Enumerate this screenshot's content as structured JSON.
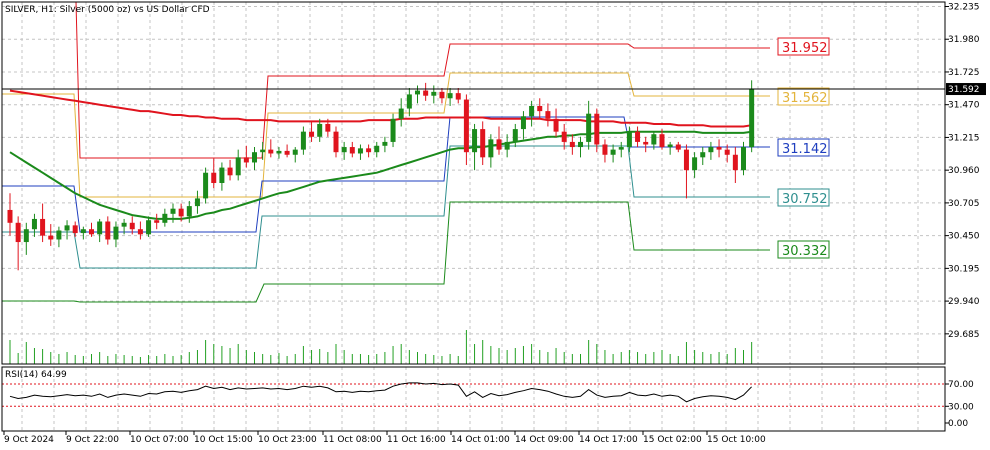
{
  "chart_title": "SILVER, H1:  Silver (5000 oz) vs US Dollar CFD",
  "rsi_label": "RSI(14) 64.99",
  "colors": {
    "bull": "#1b8a1b",
    "bear": "#e0141e",
    "ma_slow": "#e0141e",
    "ma_fast": "#1b8a1b",
    "grid": "#c4c4c4",
    "volume": "#22a022",
    "rsi_line": "#000000",
    "rsi_levels": "#e0141e"
  },
  "chart_data": {
    "type": "candlestick",
    "ylim": [
      29.45,
      32.27
    ],
    "y_ticks": [
      "32.235",
      "31.980",
      "31.725",
      "31.470",
      "31.215",
      "30.960",
      "30.705",
      "30.450",
      "30.195",
      "29.940",
      "29.685"
    ],
    "x_ticks": [
      "9 Oct 2024",
      "9 Oct 22:00",
      "10 Oct 07:00",
      "10 Oct 15:00",
      "10 Oct 23:00",
      "11 Oct 08:00",
      "11 Oct 16:00",
      "14 Oct 01:00",
      "14 Oct 09:00",
      "14 Oct 17:00",
      "15 Oct 02:00",
      "15 Oct 10:00"
    ],
    "current_price": "31.592",
    "current_price_value": 31.592,
    "levels": [
      {
        "label": "31.952",
        "value": 31.952,
        "color": "#e0141e"
      },
      {
        "label": "31.562",
        "value": 31.562,
        "color": "#e3b43c"
      },
      {
        "label": "31.142",
        "value": 31.142,
        "color": "#1f3fbf"
      },
      {
        "label": "30.752",
        "value": 30.752,
        "color": "#2f8f8f"
      },
      {
        "label": "30.332",
        "value": 30.332,
        "color": "#1b8a1b"
      }
    ],
    "candles": [
      {
        "o": 30.65,
        "h": 30.78,
        "l": 30.45,
        "c": 30.55
      },
      {
        "o": 30.55,
        "h": 30.6,
        "l": 30.18,
        "c": 30.4
      },
      {
        "o": 30.4,
        "h": 30.55,
        "l": 30.3,
        "c": 30.5
      },
      {
        "o": 30.5,
        "h": 30.62,
        "l": 30.44,
        "c": 30.58
      },
      {
        "o": 30.58,
        "h": 30.7,
        "l": 30.4,
        "c": 30.45
      },
      {
        "o": 30.45,
        "h": 30.54,
        "l": 30.37,
        "c": 30.42
      },
      {
        "o": 30.42,
        "h": 30.52,
        "l": 30.36,
        "c": 30.49
      },
      {
        "o": 30.49,
        "h": 30.57,
        "l": 30.42,
        "c": 30.53
      },
      {
        "o": 30.53,
        "h": 30.56,
        "l": 30.44,
        "c": 30.47
      },
      {
        "o": 30.47,
        "h": 30.52,
        "l": 30.42,
        "c": 30.5
      },
      {
        "o": 30.5,
        "h": 30.55,
        "l": 30.44,
        "c": 30.46
      },
      {
        "o": 30.46,
        "h": 30.58,
        "l": 30.4,
        "c": 30.56
      },
      {
        "o": 30.56,
        "h": 30.6,
        "l": 30.38,
        "c": 30.42
      },
      {
        "o": 30.42,
        "h": 30.56,
        "l": 30.36,
        "c": 30.52
      },
      {
        "o": 30.52,
        "h": 30.58,
        "l": 30.46,
        "c": 30.55
      },
      {
        "o": 30.55,
        "h": 30.6,
        "l": 30.46,
        "c": 30.5
      },
      {
        "o": 30.5,
        "h": 30.56,
        "l": 30.42,
        "c": 30.46
      },
      {
        "o": 30.46,
        "h": 30.6,
        "l": 30.44,
        "c": 30.57
      },
      {
        "o": 30.57,
        "h": 30.62,
        "l": 30.5,
        "c": 30.55
      },
      {
        "o": 30.55,
        "h": 30.66,
        "l": 30.52,
        "c": 30.62
      },
      {
        "o": 30.62,
        "h": 30.7,
        "l": 30.55,
        "c": 30.66
      },
      {
        "o": 30.66,
        "h": 30.7,
        "l": 30.56,
        "c": 30.6
      },
      {
        "o": 30.6,
        "h": 30.72,
        "l": 30.55,
        "c": 30.68
      },
      {
        "o": 30.68,
        "h": 30.8,
        "l": 30.62,
        "c": 30.74
      },
      {
        "o": 30.74,
        "h": 30.98,
        "l": 30.7,
        "c": 30.94
      },
      {
        "o": 30.94,
        "h": 31.05,
        "l": 30.82,
        "c": 30.86
      },
      {
        "o": 30.86,
        "h": 31.02,
        "l": 30.8,
        "c": 30.98
      },
      {
        "o": 30.98,
        "h": 31.04,
        "l": 30.88,
        "c": 30.92
      },
      {
        "o": 30.92,
        "h": 31.12,
        "l": 30.88,
        "c": 31.06
      },
      {
        "o": 31.06,
        "h": 31.15,
        "l": 30.98,
        "c": 31.02
      },
      {
        "o": 31.02,
        "h": 31.14,
        "l": 30.96,
        "c": 31.1
      },
      {
        "o": 31.1,
        "h": 31.18,
        "l": 31.04,
        "c": 31.12
      },
      {
        "o": 31.12,
        "h": 31.2,
        "l": 31.06,
        "c": 31.09
      },
      {
        "o": 31.09,
        "h": 31.14,
        "l": 31.05,
        "c": 31.11
      },
      {
        "o": 31.11,
        "h": 31.16,
        "l": 31.06,
        "c": 31.08
      },
      {
        "o": 31.08,
        "h": 31.14,
        "l": 31.02,
        "c": 31.12
      },
      {
        "o": 31.12,
        "h": 31.3,
        "l": 31.08,
        "c": 31.26
      },
      {
        "o": 31.26,
        "h": 31.34,
        "l": 31.18,
        "c": 31.22
      },
      {
        "o": 31.22,
        "h": 31.36,
        "l": 31.18,
        "c": 31.32
      },
      {
        "o": 31.32,
        "h": 31.36,
        "l": 31.22,
        "c": 31.26
      },
      {
        "o": 31.26,
        "h": 31.3,
        "l": 31.06,
        "c": 31.1
      },
      {
        "o": 31.1,
        "h": 31.18,
        "l": 31.04,
        "c": 31.14
      },
      {
        "o": 31.14,
        "h": 31.18,
        "l": 31.06,
        "c": 31.09
      },
      {
        "o": 31.09,
        "h": 31.16,
        "l": 31.04,
        "c": 31.13
      },
      {
        "o": 31.13,
        "h": 31.16,
        "l": 31.06,
        "c": 31.1
      },
      {
        "o": 31.1,
        "h": 31.18,
        "l": 31.06,
        "c": 31.15
      },
      {
        "o": 31.15,
        "h": 31.22,
        "l": 31.1,
        "c": 31.18
      },
      {
        "o": 31.18,
        "h": 31.4,
        "l": 31.14,
        "c": 31.36
      },
      {
        "o": 31.36,
        "h": 31.52,
        "l": 31.3,
        "c": 31.44
      },
      {
        "o": 31.44,
        "h": 31.6,
        "l": 31.38,
        "c": 31.55
      },
      {
        "o": 31.55,
        "h": 31.62,
        "l": 31.48,
        "c": 31.58
      },
      {
        "o": 31.58,
        "h": 31.64,
        "l": 31.5,
        "c": 31.54
      },
      {
        "o": 31.54,
        "h": 31.62,
        "l": 31.48,
        "c": 31.57
      },
      {
        "o": 31.57,
        "h": 31.6,
        "l": 31.48,
        "c": 31.52
      },
      {
        "o": 31.52,
        "h": 31.6,
        "l": 31.46,
        "c": 31.56
      },
      {
        "o": 31.56,
        "h": 31.6,
        "l": 31.48,
        "c": 31.51
      },
      {
        "o": 31.51,
        "h": 31.55,
        "l": 31.0,
        "c": 31.1
      },
      {
        "o": 31.1,
        "h": 31.32,
        "l": 30.96,
        "c": 31.28
      },
      {
        "o": 31.28,
        "h": 31.34,
        "l": 31.0,
        "c": 31.06
      },
      {
        "o": 31.06,
        "h": 31.24,
        "l": 30.98,
        "c": 31.2
      },
      {
        "o": 31.2,
        "h": 31.3,
        "l": 31.08,
        "c": 31.12
      },
      {
        "o": 31.12,
        "h": 31.24,
        "l": 31.06,
        "c": 31.18
      },
      {
        "o": 31.18,
        "h": 31.32,
        "l": 31.14,
        "c": 31.28
      },
      {
        "o": 31.28,
        "h": 31.42,
        "l": 31.2,
        "c": 31.38
      },
      {
        "o": 31.38,
        "h": 31.5,
        "l": 31.3,
        "c": 31.46
      },
      {
        "o": 31.46,
        "h": 31.52,
        "l": 31.36,
        "c": 31.42
      },
      {
        "o": 31.42,
        "h": 31.48,
        "l": 31.3,
        "c": 31.36
      },
      {
        "o": 31.36,
        "h": 31.44,
        "l": 31.22,
        "c": 31.26
      },
      {
        "o": 31.26,
        "h": 31.32,
        "l": 31.12,
        "c": 31.18
      },
      {
        "o": 31.18,
        "h": 31.24,
        "l": 31.08,
        "c": 31.14
      },
      {
        "o": 31.14,
        "h": 31.22,
        "l": 31.06,
        "c": 31.18
      },
      {
        "o": 31.18,
        "h": 31.5,
        "l": 31.12,
        "c": 31.4
      },
      {
        "o": 31.4,
        "h": 31.44,
        "l": 31.1,
        "c": 31.16
      },
      {
        "o": 31.16,
        "h": 31.2,
        "l": 31.02,
        "c": 31.08
      },
      {
        "o": 31.08,
        "h": 31.16,
        "l": 31.02,
        "c": 31.12
      },
      {
        "o": 31.12,
        "h": 31.18,
        "l": 31.06,
        "c": 31.14
      },
      {
        "o": 31.14,
        "h": 31.3,
        "l": 31.1,
        "c": 31.26
      },
      {
        "o": 31.26,
        "h": 31.3,
        "l": 31.14,
        "c": 31.18
      },
      {
        "o": 31.18,
        "h": 31.22,
        "l": 31.1,
        "c": 31.16
      },
      {
        "o": 31.16,
        "h": 31.26,
        "l": 31.12,
        "c": 31.24
      },
      {
        "o": 31.24,
        "h": 31.28,
        "l": 31.12,
        "c": 31.14
      },
      {
        "o": 31.14,
        "h": 31.18,
        "l": 31.08,
        "c": 31.16
      },
      {
        "o": 31.16,
        "h": 31.18,
        "l": 31.1,
        "c": 31.12
      },
      {
        "o": 31.12,
        "h": 31.16,
        "l": 30.74,
        "c": 30.96
      },
      {
        "o": 30.96,
        "h": 31.1,
        "l": 30.9,
        "c": 31.06
      },
      {
        "o": 31.06,
        "h": 31.14,
        "l": 31.0,
        "c": 31.1
      },
      {
        "o": 31.1,
        "h": 31.18,
        "l": 31.04,
        "c": 31.14
      },
      {
        "o": 31.14,
        "h": 31.2,
        "l": 31.06,
        "c": 31.12
      },
      {
        "o": 31.12,
        "h": 31.16,
        "l": 31.02,
        "c": 31.08
      },
      {
        "o": 31.08,
        "h": 31.14,
        "l": 30.86,
        "c": 30.96
      },
      {
        "o": 30.96,
        "h": 31.18,
        "l": 30.92,
        "c": 31.14
      },
      {
        "o": 31.14,
        "h": 31.66,
        "l": 31.1,
        "c": 31.59
      }
    ],
    "ma_slow": [
      31.58,
      31.57,
      31.56,
      31.55,
      31.54,
      31.53,
      31.52,
      31.51,
      31.5,
      31.49,
      31.48,
      31.47,
      31.46,
      31.45,
      31.44,
      31.43,
      31.42,
      31.42,
      31.41,
      31.4,
      31.39,
      31.39,
      31.38,
      31.38,
      31.37,
      31.37,
      31.36,
      31.36,
      31.36,
      31.35,
      31.35,
      31.35,
      31.35,
      31.34,
      31.34,
      31.34,
      31.34,
      31.34,
      31.34,
      31.34,
      31.34,
      31.34,
      31.34,
      31.34,
      31.35,
      31.35,
      31.35,
      31.35,
      31.36,
      31.36,
      31.36,
      31.37,
      31.37,
      31.37,
      31.37,
      31.37,
      31.37,
      31.37,
      31.37,
      31.36,
      31.36,
      31.36,
      31.36,
      31.36,
      31.36,
      31.36,
      31.35,
      31.35,
      31.35,
      31.35,
      31.35,
      31.34,
      31.34,
      31.34,
      31.34,
      31.33,
      31.33,
      31.33,
      31.33,
      31.32,
      31.32,
      31.32,
      31.31,
      31.31,
      31.31,
      31.31,
      31.3,
      31.3,
      31.3,
      31.3,
      31.3,
      31.31
    ],
    "ma_fast": [
      31.1,
      31.06,
      31.02,
      30.98,
      30.94,
      30.9,
      30.86,
      30.82,
      30.78,
      30.75,
      30.72,
      30.69,
      30.67,
      30.65,
      30.63,
      30.61,
      30.6,
      30.59,
      30.58,
      30.58,
      30.58,
      30.58,
      30.59,
      30.6,
      30.62,
      30.63,
      30.65,
      30.66,
      30.68,
      30.7,
      30.72,
      30.74,
      30.76,
      30.78,
      30.79,
      30.81,
      30.83,
      30.85,
      30.87,
      30.88,
      30.89,
      30.9,
      30.91,
      30.92,
      30.93,
      30.94,
      30.96,
      30.98,
      31.0,
      31.02,
      31.04,
      31.06,
      31.08,
      31.1,
      31.12,
      31.13,
      31.13,
      31.14,
      31.14,
      31.15,
      31.16,
      31.17,
      31.18,
      31.19,
      31.2,
      31.21,
      31.22,
      31.22,
      31.23,
      31.23,
      31.24,
      31.24,
      31.25,
      31.25,
      31.25,
      31.25,
      31.26,
      31.26,
      31.26,
      31.26,
      31.26,
      31.26,
      31.26,
      31.26,
      31.26,
      31.25,
      31.25,
      31.25,
      31.25,
      31.25,
      31.25,
      31.26
    ],
    "volume": [
      24,
      11,
      22,
      16,
      15,
      12,
      10,
      12,
      9,
      8,
      10,
      12,
      8,
      10,
      9,
      8,
      7,
      9,
      8,
      10,
      8,
      9,
      12,
      14,
      24,
      20,
      18,
      16,
      20,
      14,
      12,
      10,
      9,
      11,
      8,
      10,
      18,
      14,
      15,
      12,
      20,
      14,
      10,
      10,
      9,
      10,
      12,
      18,
      20,
      14,
      12,
      10,
      9,
      8,
      10,
      8,
      34,
      20,
      24,
      18,
      16,
      14,
      16,
      18,
      20,
      14,
      12,
      16,
      12,
      10,
      10,
      24,
      20,
      14,
      10,
      12,
      14,
      12,
      10,
      12,
      14,
      10,
      8,
      22,
      14,
      12,
      10,
      12,
      10,
      16,
      14,
      22
    ],
    "rsi": {
      "levels": [
        70,
        30
      ],
      "ticks": [
        "70.00",
        "30.00",
        "0.00"
      ],
      "values": [
        48,
        44,
        46,
        50,
        48,
        47,
        49,
        51,
        49,
        50,
        48,
        52,
        46,
        50,
        52,
        50,
        48,
        53,
        52,
        56,
        57,
        55,
        58,
        60,
        66,
        62,
        64,
        60,
        63,
        61,
        62,
        63,
        61,
        62,
        60,
        62,
        66,
        64,
        66,
        63,
        56,
        57,
        55,
        57,
        56,
        58,
        59,
        66,
        70,
        72,
        72,
        70,
        71,
        69,
        70,
        68,
        48,
        56,
        46,
        53,
        49,
        51,
        55,
        58,
        62,
        60,
        57,
        52,
        48,
        46,
        48,
        60,
        50,
        46,
        48,
        49,
        55,
        50,
        49,
        52,
        48,
        50,
        48,
        38,
        44,
        47,
        49,
        48,
        46,
        42,
        50,
        64.99
      ]
    },
    "channels": [
      {
        "name": "red_upper",
        "color": "#e0141e",
        "points": [
          [
            76,
            2
          ],
          [
            80,
            158
          ],
          [
            262,
            158
          ],
          [
            268,
            76
          ],
          [
            444,
            76
          ],
          [
            450,
            44
          ],
          [
            628,
            44
          ],
          [
            634,
            48
          ],
          [
            770,
            48
          ]
        ]
      },
      {
        "name": "orange_upper",
        "color": "#e3b43c",
        "points": [
          [
            2,
            94
          ],
          [
            74,
            94
          ],
          [
            80,
            197
          ],
          [
            262,
            197
          ],
          [
            268,
            113
          ],
          [
            444,
            113
          ],
          [
            450,
            73
          ],
          [
            628,
            73
          ],
          [
            634,
            96
          ],
          [
            770,
            96
          ]
        ]
      },
      {
        "name": "blue_mid",
        "color": "#1f3fbf",
        "points": [
          [
            2,
            186
          ],
          [
            74,
            186
          ],
          [
            80,
            232
          ],
          [
            256,
            232
          ],
          [
            262,
            181
          ],
          [
            444,
            181
          ],
          [
            450,
            117
          ],
          [
            624,
            117
          ],
          [
            630,
            147
          ],
          [
            770,
            147
          ]
        ]
      },
      {
        "name": "blue_lower",
        "color": "#2f8f8f",
        "points": [
          [
            2,
            232
          ],
          [
            74,
            232
          ],
          [
            80,
            268
          ],
          [
            256,
            268
          ],
          [
            262,
            216
          ],
          [
            444,
            216
          ],
          [
            450,
            146
          ],
          [
            628,
            146
          ],
          [
            634,
            197
          ],
          [
            770,
            197
          ]
        ]
      },
      {
        "name": "green_lower",
        "color": "#1b8a1b",
        "points": [
          [
            2,
            301
          ],
          [
            74,
            301
          ],
          [
            80,
            302
          ],
          [
            256,
            302
          ],
          [
            264,
            284
          ],
          [
            444,
            284
          ],
          [
            450,
            202
          ],
          [
            628,
            202
          ],
          [
            634,
            250
          ],
          [
            770,
            250
          ]
        ]
      }
    ]
  }
}
